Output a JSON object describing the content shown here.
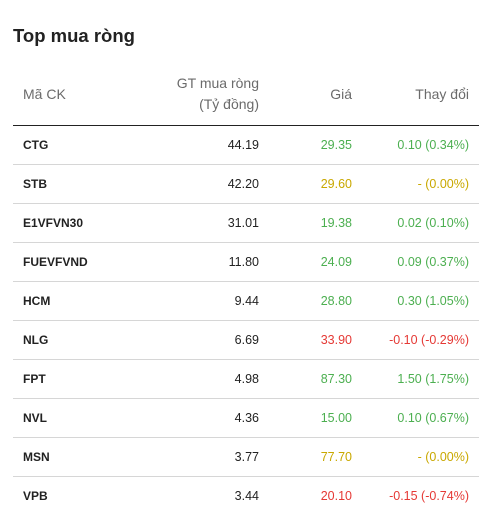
{
  "widget": {
    "title": "Top mua ròng"
  },
  "table": {
    "headers": {
      "code": "Mã CK",
      "value_line1": "GT mua ròng",
      "value_line2": "(Tỷ đồng)",
      "price": "Giá",
      "change": "Thay đổi"
    },
    "colors": {
      "up": "#4caf50",
      "ref": "#c9a800",
      "down": "#e53935"
    },
    "rows": [
      {
        "code": "CTG",
        "value": "44.19",
        "price": "29.35",
        "change": "0.10 (0.34%)",
        "trend": "up"
      },
      {
        "code": "STB",
        "value": "42.20",
        "price": "29.60",
        "change": "- (0.00%)",
        "trend": "ref"
      },
      {
        "code": "E1VFVN30",
        "value": "31.01",
        "price": "19.38",
        "change": "0.02 (0.10%)",
        "trend": "up"
      },
      {
        "code": "FUEVFVND",
        "value": "11.80",
        "price": "24.09",
        "change": "0.09 (0.37%)",
        "trend": "up"
      },
      {
        "code": "HCM",
        "value": "9.44",
        "price": "28.80",
        "change": "0.30 (1.05%)",
        "trend": "up"
      },
      {
        "code": "NLG",
        "value": "6.69",
        "price": "33.90",
        "change": "-0.10 (-0.29%)",
        "trend": "down"
      },
      {
        "code": "FPT",
        "value": "4.98",
        "price": "87.30",
        "change": "1.50 (1.75%)",
        "trend": "up"
      },
      {
        "code": "NVL",
        "value": "4.36",
        "price": "15.00",
        "change": "0.10 (0.67%)",
        "trend": "up"
      },
      {
        "code": "MSN",
        "value": "3.77",
        "price": "77.70",
        "change": "- (0.00%)",
        "trend": "ref"
      },
      {
        "code": "VPB",
        "value": "3.44",
        "price": "20.10",
        "change": "-0.15 (-0.74%)",
        "trend": "down"
      }
    ]
  }
}
